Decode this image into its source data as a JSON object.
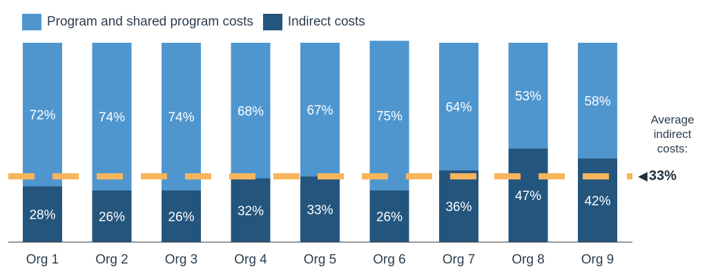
{
  "chart_data": {
    "type": "bar",
    "stacked": true,
    "categories": [
      "Org 1",
      "Org 2",
      "Org 3",
      "Org 4",
      "Org 5",
      "Org 6",
      "Org 7",
      "Org 8",
      "Org 9"
    ],
    "series": [
      {
        "name": "Indirect costs",
        "color": "#24557d",
        "values": [
          28,
          26,
          26,
          32,
          33,
          26,
          36,
          47,
          42
        ],
        "labels": [
          "28%",
          "26%",
          "26%",
          "32%",
          "33%",
          "26%",
          "36%",
          "47%",
          "42%"
        ]
      },
      {
        "name": "Program and shared program costs",
        "color": "#4f96cf",
        "values": [
          72,
          74,
          74,
          68,
          67,
          75,
          64,
          53,
          58
        ],
        "labels": [
          "72%",
          "74%",
          "74%",
          "68%",
          "67%",
          "75%",
          "64%",
          "53%",
          "58%"
        ]
      }
    ],
    "ylim": [
      0,
      100
    ],
    "reference_line": {
      "value": 33,
      "color": "#f7b55c",
      "style": "dashed"
    },
    "legend_position": "top-left",
    "grid": false
  },
  "legend": {
    "program_label": "Program and shared program costs",
    "indirect_label": "Indirect costs"
  },
  "average": {
    "label_line1": "Average",
    "label_line2": "indirect",
    "label_line3": "costs:",
    "value": "33%"
  }
}
